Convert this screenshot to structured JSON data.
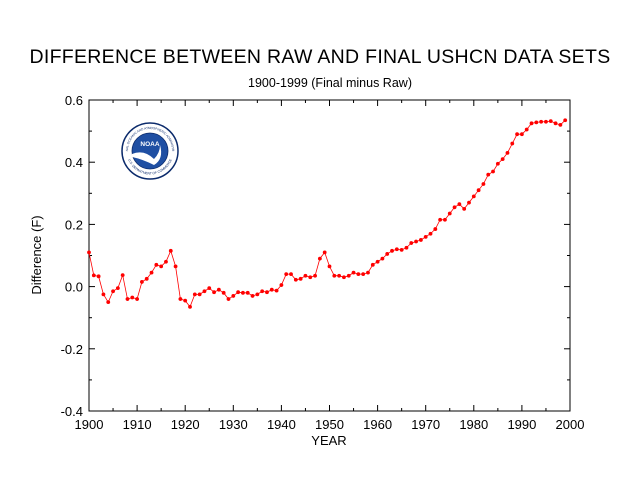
{
  "title": "DIFFERENCE BETWEEN RAW AND FINAL USHCN DATA SETS",
  "subtitle": "1900-1999 (Final minus Raw)",
  "logo": {
    "text": "NOAA",
    "ring_text_top": "NATIONAL OCEANIC AND ATMOSPHERIC ADMINISTRATION",
    "ring_text_bottom": "U.S. DEPARTMENT OF COMMERCE",
    "colors": {
      "ring": "#ffffff",
      "outline": "#0b2a6b",
      "sky": "#1f4fa3",
      "wave": "#ffffff",
      "text": "#0b2a6b"
    }
  },
  "chart_data": {
    "type": "line",
    "title": "DIFFERENCE BETWEEN RAW AND FINAL USHCN DATA SETS",
    "subtitle": "1900-1999 (Final minus Raw)",
    "xlabel": "YEAR",
    "ylabel": "Difference (F)",
    "xlim": [
      1900,
      2000
    ],
    "ylim": [
      -0.4,
      0.6
    ],
    "xticks": [
      1900,
      1910,
      1920,
      1930,
      1940,
      1950,
      1960,
      1970,
      1980,
      1990,
      2000
    ],
    "yticks": [
      -0.4,
      -0.2,
      0.0,
      0.2,
      0.4,
      0.6
    ],
    "ytick_labels": [
      "-0.4",
      "-0.2",
      "0.0",
      "0.2",
      "0.4",
      "0.6"
    ],
    "grid": false,
    "legend": "none",
    "series": [
      {
        "color": "#ff0000",
        "marker": "circle",
        "x": [
          1900,
          1901,
          1902,
          1903,
          1904,
          1905,
          1906,
          1907,
          1908,
          1909,
          1910,
          1911,
          1912,
          1913,
          1914,
          1915,
          1916,
          1917,
          1918,
          1919,
          1920,
          1921,
          1922,
          1923,
          1924,
          1925,
          1926,
          1927,
          1928,
          1929,
          1930,
          1931,
          1932,
          1933,
          1934,
          1935,
          1936,
          1937,
          1938,
          1939,
          1940,
          1941,
          1942,
          1943,
          1944,
          1945,
          1946,
          1947,
          1948,
          1949,
          1950,
          1951,
          1952,
          1953,
          1954,
          1955,
          1956,
          1957,
          1958,
          1959,
          1960,
          1961,
          1962,
          1963,
          1964,
          1965,
          1966,
          1967,
          1968,
          1969,
          1970,
          1971,
          1972,
          1973,
          1974,
          1975,
          1976,
          1977,
          1978,
          1979,
          1980,
          1981,
          1982,
          1983,
          1984,
          1985,
          1986,
          1987,
          1988,
          1989,
          1990,
          1991,
          1992,
          1993,
          1994,
          1995,
          1996,
          1997,
          1998,
          1999
        ],
        "y": [
          0.11,
          0.036,
          0.033,
          -0.025,
          -0.05,
          -0.015,
          -0.005,
          0.037,
          -0.04,
          -0.035,
          -0.04,
          0.015,
          0.025,
          0.045,
          0.07,
          0.065,
          0.08,
          0.115,
          0.065,
          -0.04,
          -0.045,
          -0.065,
          -0.025,
          -0.025,
          -0.015,
          -0.005,
          -0.018,
          -0.01,
          -0.02,
          -0.04,
          -0.03,
          -0.018,
          -0.02,
          -0.02,
          -0.03,
          -0.025,
          -0.015,
          -0.018,
          -0.01,
          -0.013,
          0.005,
          0.04,
          0.04,
          0.022,
          0.025,
          0.035,
          0.03,
          0.035,
          0.09,
          0.11,
          0.065,
          0.035,
          0.035,
          0.03,
          0.035,
          0.045,
          0.04,
          0.04,
          0.045,
          0.07,
          0.08,
          0.09,
          0.105,
          0.115,
          0.12,
          0.118,
          0.125,
          0.14,
          0.145,
          0.15,
          0.16,
          0.17,
          0.185,
          0.215,
          0.215,
          0.235,
          0.255,
          0.265,
          0.25,
          0.27,
          0.29,
          0.31,
          0.33,
          0.36,
          0.37,
          0.395,
          0.41,
          0.43,
          0.46,
          0.49,
          0.49,
          0.505,
          0.525,
          0.528,
          0.53,
          0.53,
          0.532,
          0.525,
          0.52,
          0.535
        ]
      }
    ]
  }
}
